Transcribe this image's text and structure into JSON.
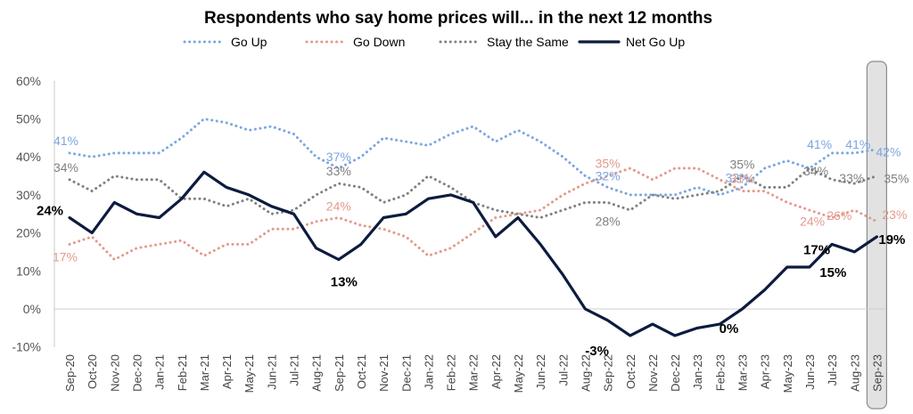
{
  "chart_data": {
    "type": "line",
    "title": "Respondents who say home prices will... in the next 12 months",
    "xlabel": "",
    "ylabel": "",
    "ylim": [
      -10,
      60
    ],
    "yticks": [
      -10,
      0,
      10,
      20,
      30,
      40,
      50,
      60
    ],
    "ytick_labels": [
      "-10%",
      "0%",
      "10%",
      "20%",
      "30%",
      "40%",
      "50%",
      "60%"
    ],
    "grid": false,
    "legend_position": "top",
    "highlight": "Sep-23",
    "x": [
      "Sep-20",
      "Oct-20",
      "Nov-20",
      "Dec-20",
      "Jan-21",
      "Feb-21",
      "Mar-21",
      "Apr-21",
      "May-21",
      "Jun-21",
      "Jul-21",
      "Aug-21",
      "Sep-21",
      "Oct-21",
      "Nov-21",
      "Dec-21",
      "Jan-22",
      "Feb-22",
      "Mar-22",
      "Apr-22",
      "May-22",
      "Jun-22",
      "Jul-22",
      "Aug-22",
      "Sep-22",
      "Oct-22",
      "Nov-22",
      "Dec-22",
      "Jan-23",
      "Feb-23",
      "Mar-23",
      "Apr-23",
      "May-23",
      "Jun-23",
      "Jul-23",
      "Aug-23",
      "Sep-23"
    ],
    "series": [
      {
        "name": "Go Up",
        "style": "dotted",
        "color": "#7ba7e0",
        "values": [
          41,
          40,
          41,
          41,
          41,
          45,
          50,
          49,
          47,
          48,
          46,
          40,
          37,
          40,
          45,
          44,
          43,
          46,
          48,
          44,
          47,
          44,
          40,
          35,
          32,
          30,
          30,
          30,
          32,
          30,
          32,
          37,
          39,
          37,
          41,
          41,
          42
        ]
      },
      {
        "name": "Go Down",
        "style": "dotted",
        "color": "#e39a8d",
        "values": [
          17,
          19,
          13,
          16,
          17,
          18,
          14,
          17,
          17,
          21,
          21,
          23,
          24,
          22,
          21,
          19,
          14,
          16,
          20,
          24,
          25,
          26,
          30,
          33,
          35,
          37,
          34,
          37,
          37,
          34,
          31,
          31,
          28,
          26,
          24,
          26,
          23
        ]
      },
      {
        "name": "Stay the Same",
        "style": "dotted",
        "color": "#808080",
        "values": [
          34,
          31,
          35,
          34,
          34,
          29,
          29,
          27,
          29,
          25,
          26,
          30,
          33,
          32,
          28,
          30,
          35,
          32,
          28,
          26,
          25,
          24,
          26,
          28,
          28,
          26,
          30,
          29,
          30,
          31,
          35,
          32,
          32,
          37,
          34,
          33,
          35
        ]
      },
      {
        "name": "Net Go Up",
        "style": "solid",
        "color": "#0d1b3e",
        "values": [
          24,
          20,
          28,
          25,
          24,
          29,
          36,
          32,
          30,
          27,
          25,
          16,
          13,
          17,
          24,
          25,
          29,
          30,
          28,
          19,
          24,
          17,
          9,
          0,
          -3,
          -7,
          -4,
          -7,
          -5,
          -4,
          0,
          5,
          11,
          11,
          17,
          15,
          19
        ]
      }
    ],
    "annotations": [
      {
        "series": 0,
        "index": 0,
        "text": "41%"
      },
      {
        "series": 0,
        "index": 12,
        "text": "37%"
      },
      {
        "series": 0,
        "index": 24,
        "text": "32%"
      },
      {
        "series": 0,
        "index": 30,
        "text": "32%"
      },
      {
        "series": 0,
        "index": 34,
        "text": "41%"
      },
      {
        "series": 0,
        "index": 35,
        "text": "41%"
      },
      {
        "series": 0,
        "index": 36,
        "text": "42%"
      },
      {
        "series": 1,
        "index": 0,
        "text": "17%"
      },
      {
        "series": 1,
        "index": 12,
        "text": "24%"
      },
      {
        "series": 1,
        "index": 24,
        "text": "35%"
      },
      {
        "series": 1,
        "index": 30,
        "text": "31%"
      },
      {
        "series": 1,
        "index": 34,
        "text": "24%"
      },
      {
        "series": 1,
        "index": 35,
        "text": "26%"
      },
      {
        "series": 1,
        "index": 36,
        "text": "23%"
      },
      {
        "series": 2,
        "index": 0,
        "text": "34%"
      },
      {
        "series": 2,
        "index": 12,
        "text": "33%"
      },
      {
        "series": 2,
        "index": 24,
        "text": "28%"
      },
      {
        "series": 2,
        "index": 30,
        "text": "35%"
      },
      {
        "series": 2,
        "index": 34,
        "text": "34%"
      },
      {
        "series": 2,
        "index": 35,
        "text": "33%"
      },
      {
        "series": 2,
        "index": 36,
        "text": "35%"
      },
      {
        "series": 3,
        "index": 0,
        "text": "24%"
      },
      {
        "series": 3,
        "index": 12,
        "text": "13%"
      },
      {
        "series": 3,
        "index": 24,
        "text": "-3%"
      },
      {
        "series": 3,
        "index": 30,
        "text": "0%"
      },
      {
        "series": 3,
        "index": 34,
        "text": "17%"
      },
      {
        "series": 3,
        "index": 35,
        "text": "15%"
      },
      {
        "series": 3,
        "index": 36,
        "text": "19%"
      }
    ]
  }
}
